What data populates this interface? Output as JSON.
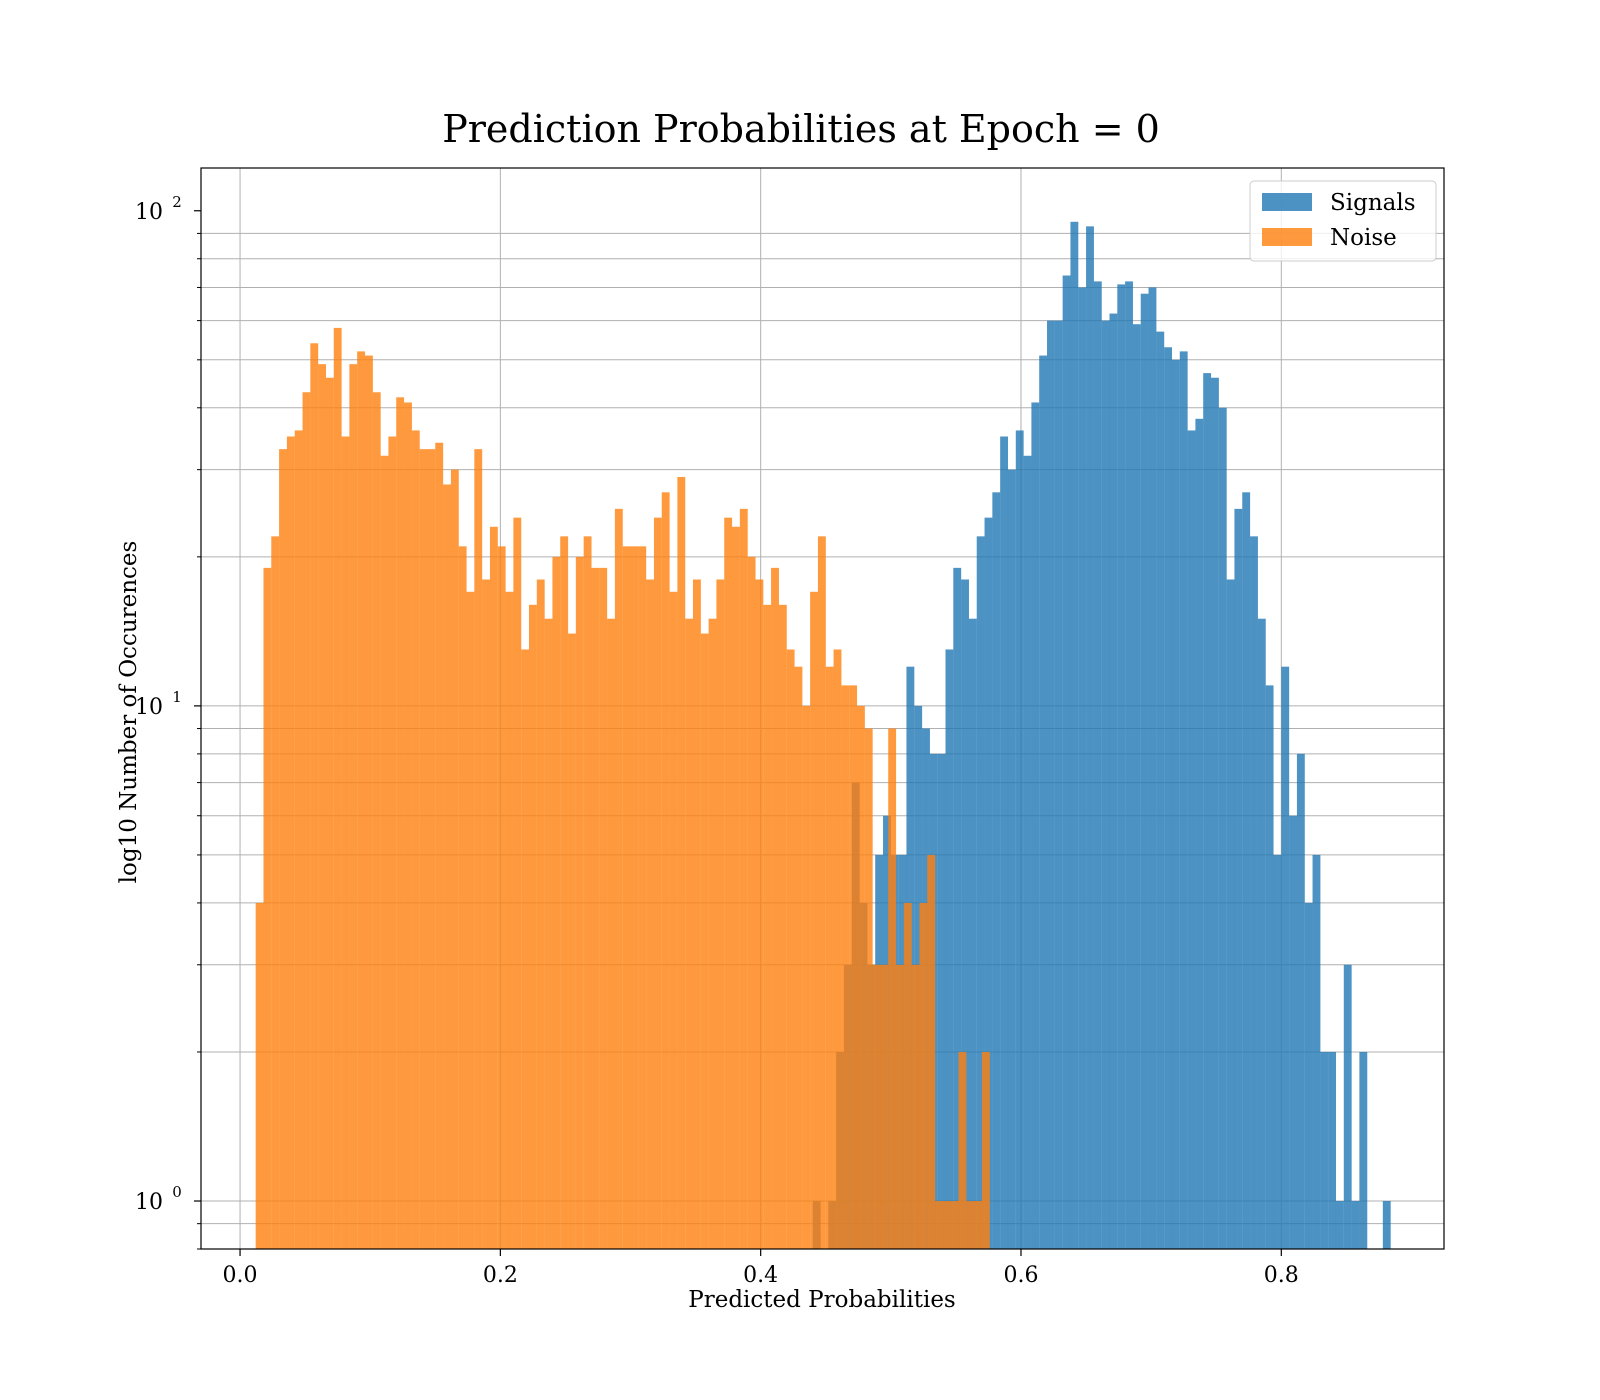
{
  "chart_data": {
    "type": "bar",
    "title": "Prediction Probabilities at Epoch = 0",
    "xlabel": "Predicted Probabilities",
    "ylabel": "log10 Number of Occurences",
    "xlim": [
      -0.03,
      0.925
    ],
    "ylim": [
      0.8,
      122
    ],
    "yscale": "log",
    "grid": true,
    "legend_position": "top-right",
    "bin_width": 0.00604,
    "x_ticks": [
      {
        "value": 0.0,
        "label": "0.0"
      },
      {
        "value": 0.2,
        "label": "0.2"
      },
      {
        "value": 0.4,
        "label": "0.4"
      },
      {
        "value": 0.6,
        "label": "0.6"
      },
      {
        "value": 0.8,
        "label": "0.8"
      }
    ],
    "y_ticks": [
      {
        "value": 1,
        "base": "10",
        "exp": "0"
      },
      {
        "value": 10,
        "base": "10",
        "exp": "1"
      },
      {
        "value": 100,
        "base": "10",
        "exp": "2"
      }
    ],
    "series": [
      {
        "name": "Signals",
        "color": "#1f77b4",
        "opacity": 0.8,
        "bins": [
          [
            0.44,
            1
          ],
          [
            0.452,
            1
          ],
          [
            0.458,
            2
          ],
          [
            0.464,
            3
          ],
          [
            0.47,
            7
          ],
          [
            0.476,
            4
          ],
          [
            0.482,
            3
          ],
          [
            0.488,
            5
          ],
          [
            0.494,
            6
          ],
          [
            0.5,
            5
          ],
          [
            0.506,
            5
          ],
          [
            0.512,
            12
          ],
          [
            0.518,
            10
          ],
          [
            0.524,
            9
          ],
          [
            0.53,
            8
          ],
          [
            0.536,
            8
          ],
          [
            0.542,
            13
          ],
          [
            0.548,
            19
          ],
          [
            0.554,
            18
          ],
          [
            0.56,
            15
          ],
          [
            0.566,
            22
          ],
          [
            0.572,
            24
          ],
          [
            0.578,
            27
          ],
          [
            0.584,
            35
          ],
          [
            0.59,
            30
          ],
          [
            0.596,
            36
          ],
          [
            0.602,
            32
          ],
          [
            0.608,
            41
          ],
          [
            0.614,
            51
          ],
          [
            0.62,
            60
          ],
          [
            0.626,
            60
          ],
          [
            0.632,
            74
          ],
          [
            0.638,
            95
          ],
          [
            0.644,
            70
          ],
          [
            0.65,
            93
          ],
          [
            0.656,
            72
          ],
          [
            0.662,
            60
          ],
          [
            0.668,
            62
          ],
          [
            0.674,
            71
          ],
          [
            0.68,
            72
          ],
          [
            0.686,
            59
          ],
          [
            0.692,
            68
          ],
          [
            0.698,
            70
          ],
          [
            0.704,
            57
          ],
          [
            0.71,
            53
          ],
          [
            0.716,
            50
          ],
          [
            0.722,
            52
          ],
          [
            0.728,
            36
          ],
          [
            0.734,
            38
          ],
          [
            0.74,
            47
          ],
          [
            0.746,
            46
          ],
          [
            0.752,
            40
          ],
          [
            0.758,
            18
          ],
          [
            0.764,
            25
          ],
          [
            0.77,
            27
          ],
          [
            0.776,
            22
          ],
          [
            0.782,
            15
          ],
          [
            0.788,
            11
          ],
          [
            0.794,
            5
          ],
          [
            0.8,
            12
          ],
          [
            0.806,
            6
          ],
          [
            0.812,
            8
          ],
          [
            0.818,
            4
          ],
          [
            0.824,
            5
          ],
          [
            0.83,
            2
          ],
          [
            0.836,
            2
          ],
          [
            0.842,
            1
          ],
          [
            0.848,
            3
          ],
          [
            0.854,
            1
          ],
          [
            0.86,
            2
          ],
          [
            0.878,
            1
          ]
        ]
      },
      {
        "name": "Noise",
        "color": "#ff7f0e",
        "opacity": 0.8,
        "bins": [
          [
            0.012,
            4
          ],
          [
            0.018,
            19
          ],
          [
            0.024,
            22
          ],
          [
            0.03,
            33
          ],
          [
            0.036,
            35
          ],
          [
            0.042,
            36
          ],
          [
            0.048,
            43
          ],
          [
            0.054,
            54
          ],
          [
            0.06,
            49
          ],
          [
            0.066,
            46
          ],
          [
            0.072,
            58
          ],
          [
            0.078,
            35
          ],
          [
            0.084,
            49
          ],
          [
            0.09,
            52
          ],
          [
            0.096,
            51
          ],
          [
            0.102,
            43
          ],
          [
            0.108,
            32
          ],
          [
            0.114,
            35
          ],
          [
            0.12,
            42
          ],
          [
            0.126,
            41
          ],
          [
            0.132,
            36
          ],
          [
            0.138,
            33
          ],
          [
            0.144,
            33
          ],
          [
            0.15,
            34
          ],
          [
            0.156,
            28
          ],
          [
            0.162,
            30
          ],
          [
            0.168,
            21
          ],
          [
            0.174,
            17
          ],
          [
            0.18,
            33
          ],
          [
            0.186,
            18
          ],
          [
            0.192,
            23
          ],
          [
            0.198,
            21
          ],
          [
            0.204,
            17
          ],
          [
            0.21,
            24
          ],
          [
            0.216,
            13
          ],
          [
            0.222,
            16
          ],
          [
            0.228,
            18
          ],
          [
            0.234,
            15
          ],
          [
            0.24,
            20
          ],
          [
            0.246,
            22
          ],
          [
            0.252,
            14
          ],
          [
            0.258,
            20
          ],
          [
            0.264,
            22
          ],
          [
            0.27,
            19
          ],
          [
            0.276,
            19
          ],
          [
            0.282,
            15
          ],
          [
            0.288,
            25
          ],
          [
            0.294,
            21
          ],
          [
            0.3,
            21
          ],
          [
            0.306,
            21
          ],
          [
            0.312,
            18
          ],
          [
            0.318,
            24
          ],
          [
            0.324,
            27
          ],
          [
            0.33,
            17
          ],
          [
            0.336,
            29
          ],
          [
            0.342,
            15
          ],
          [
            0.348,
            18
          ],
          [
            0.354,
            14
          ],
          [
            0.36,
            15
          ],
          [
            0.366,
            18
          ],
          [
            0.372,
            24
          ],
          [
            0.378,
            23
          ],
          [
            0.384,
            25
          ],
          [
            0.39,
            20
          ],
          [
            0.396,
            18
          ],
          [
            0.402,
            16
          ],
          [
            0.408,
            19
          ],
          [
            0.414,
            16
          ],
          [
            0.42,
            13
          ],
          [
            0.426,
            12
          ],
          [
            0.432,
            10
          ],
          [
            0.438,
            17
          ],
          [
            0.444,
            22
          ],
          [
            0.45,
            12
          ],
          [
            0.456,
            13
          ],
          [
            0.462,
            11
          ],
          [
            0.468,
            11
          ],
          [
            0.474,
            10
          ],
          [
            0.48,
            9
          ],
          [
            0.486,
            3
          ],
          [
            0.492,
            3
          ],
          [
            0.498,
            9
          ],
          [
            0.504,
            3
          ],
          [
            0.51,
            4
          ],
          [
            0.516,
            3
          ],
          [
            0.522,
            4
          ],
          [
            0.528,
            5
          ],
          [
            0.534,
            1
          ],
          [
            0.54,
            1
          ],
          [
            0.546,
            1
          ],
          [
            0.552,
            2
          ],
          [
            0.558,
            1
          ],
          [
            0.564,
            1
          ],
          [
            0.57,
            2
          ]
        ]
      }
    ]
  }
}
